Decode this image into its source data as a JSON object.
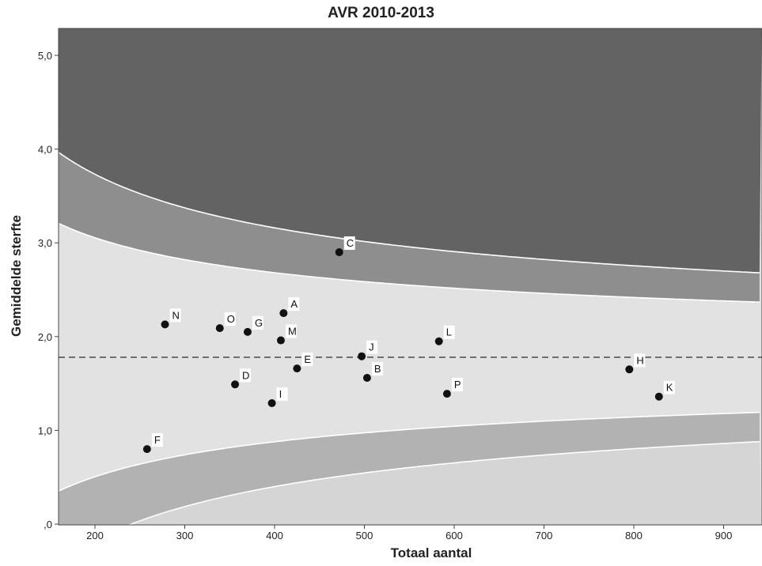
{
  "chart_data": {
    "type": "scatter",
    "title": "AVR 2010-2013",
    "xlabel": "Totaal aantal",
    "ylabel": "Gemiddelde sterfte",
    "xlim": [
      160,
      940
    ],
    "ylim": [
      0,
      5.25
    ],
    "x_ticks": [
      200,
      300,
      400,
      500,
      600,
      700,
      800,
      900
    ],
    "y_ticks": [
      0,
      1,
      2,
      3,
      4,
      5
    ],
    "y_tick_labels": [
      ",0",
      "1,0",
      "2,0",
      "3,0",
      "4,0",
      "5,0"
    ],
    "reference_line": 1.78,
    "band_colors": {
      "lower_outer": "#d5d5d5",
      "lower_inner": "#b2b2b2",
      "center": "#e2e2e2",
      "upper_inner": "#8e8e8e",
      "upper_outer": "#636363"
    },
    "points": [
      {
        "label": "A",
        "x": 410,
        "y": 2.25
      },
      {
        "label": "B",
        "x": 503,
        "y": 1.56
      },
      {
        "label": "C",
        "x": 472,
        "y": 2.9
      },
      {
        "label": "D",
        "x": 356,
        "y": 1.49
      },
      {
        "label": "E",
        "x": 425,
        "y": 1.66
      },
      {
        "label": "F",
        "x": 258,
        "y": 0.8
      },
      {
        "label": "G",
        "x": 370,
        "y": 2.05
      },
      {
        "label": "H",
        "x": 795,
        "y": 1.65
      },
      {
        "label": "I",
        "x": 397,
        "y": 1.29
      },
      {
        "label": "J",
        "x": 497,
        "y": 1.79
      },
      {
        "label": "K",
        "x": 828,
        "y": 1.36
      },
      {
        "label": "L",
        "x": 583,
        "y": 1.95
      },
      {
        "label": "M",
        "x": 407,
        "y": 1.96
      },
      {
        "label": "N",
        "x": 278,
        "y": 2.13
      },
      {
        "label": "O",
        "x": 339,
        "y": 2.09
      },
      {
        "label": "P",
        "x": 592,
        "y": 1.39
      }
    ]
  }
}
